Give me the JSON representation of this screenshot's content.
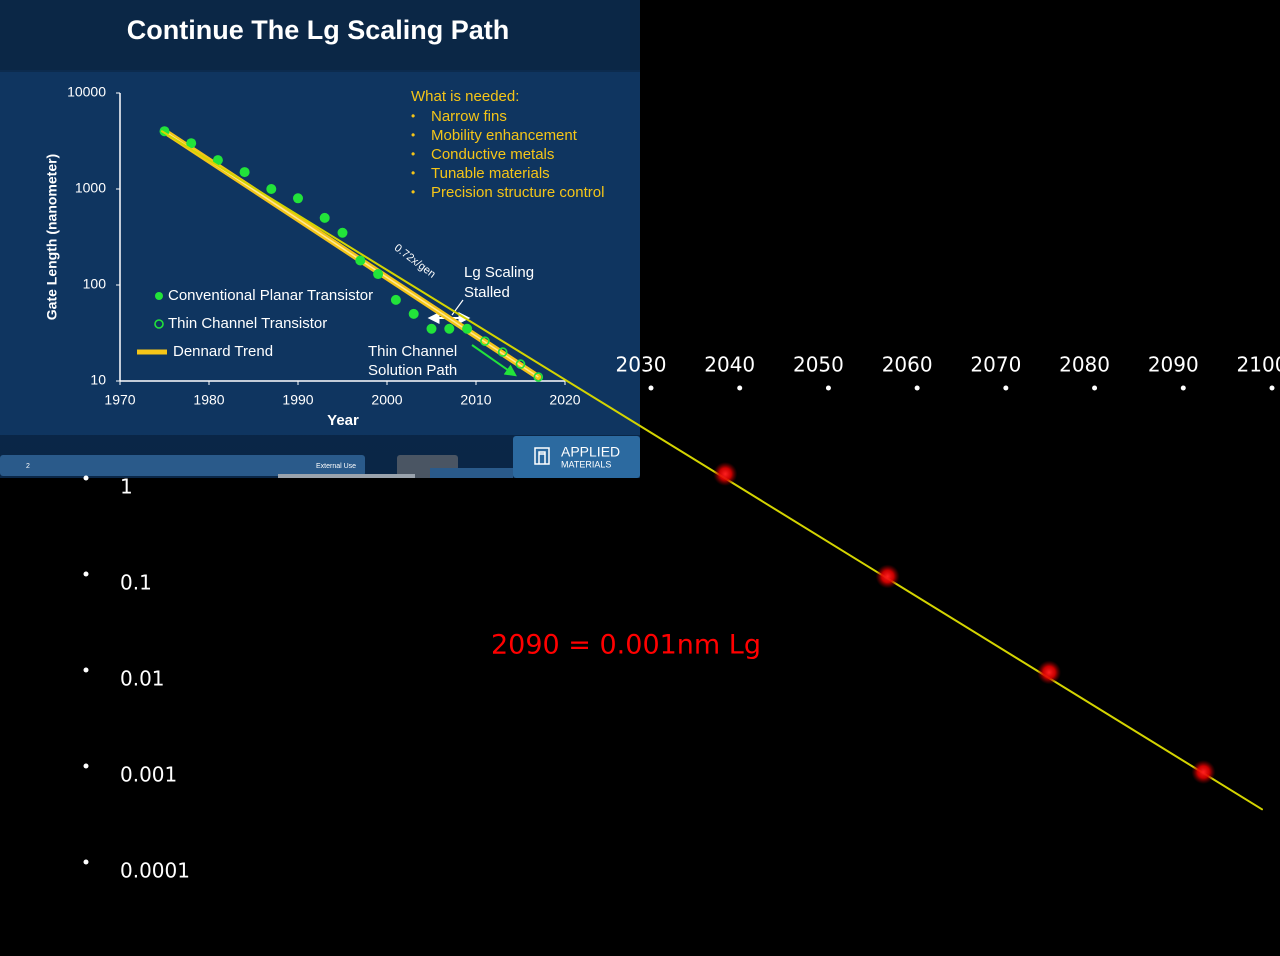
{
  "slide": {
    "page_number": "2",
    "footer": "External Use",
    "logo": [
      "APPLIED",
      "MATERIALS"
    ]
  },
  "chart_data": [
    {
      "type": "scatter",
      "title": "Continue The Lg Scaling Path",
      "x_label": "Year",
      "y_label": "Gate Length (nanometer)",
      "xlim": [
        1970,
        2020
      ],
      "xticks": [
        1970,
        1980,
        1990,
        2000,
        2010,
        2020
      ],
      "ylim": [
        10,
        10000
      ],
      "yticks": [
        10,
        100,
        1000,
        10000
      ],
      "y_scale": "log",
      "grid": false,
      "series": [
        {
          "name": "Conventional Planar Transistor",
          "color": "#22e33a",
          "mode": "markers",
          "marker": "filled",
          "x": [
            1975,
            1978,
            1981,
            1984,
            1987,
            1990,
            1993,
            1995,
            1997,
            1999,
            2001,
            2003,
            2005,
            2007,
            2009
          ],
          "values": [
            4000,
            3000,
            2000,
            1500,
            1000,
            800,
            500,
            350,
            180,
            130,
            70,
            50,
            35,
            35,
            35
          ]
        },
        {
          "name": "Thin Channel Transistor",
          "color": "#22e33a",
          "mode": "markers",
          "marker": "open",
          "x": [
            2011,
            2013,
            2015,
            2017
          ],
          "values": [
            26,
            20,
            15,
            11
          ]
        },
        {
          "name": "Dennard Trend",
          "color": "#f5c518",
          "mode": "line",
          "x": [
            1975,
            2017
          ],
          "values": [
            4000,
            11
          ]
        }
      ],
      "notes": {
        "heading": "What is needed:",
        "color": "#f5c518",
        "items": [
          "Narrow fins",
          "Mobility enhancement",
          "Conductive metals",
          "Tunable materials",
          "Precision structure control"
        ]
      },
      "annotations": [
        "0.72x/gen",
        "Lg Scaling",
        "Stalled",
        "Thin Channel",
        "Solution Path"
      ]
    },
    {
      "type": "line",
      "y_scale": "log",
      "xlim": [
        2030,
        2100
      ],
      "xticks": [
        2030,
        2040,
        2050,
        2060,
        2070,
        2080,
        2090,
        2100
      ],
      "ylim": [
        0.0001,
        1
      ],
      "yticks": [
        1,
        0.1,
        0.01,
        0.001,
        0.0001
      ],
      "annotation": "2090 = 0.001nm Lg",
      "annotation_color": "#ff0000",
      "series": [
        {
          "color": "#d4d400",
          "mode": "line",
          "x": [
            1976,
            2100
          ],
          "values": [
            5200,
            0.00045
          ]
        },
        {
          "color": "#ff0000",
          "mode": "markers",
          "marker": "glow",
          "x": [
            2039.5,
            2057.8,
            2076,
            2093.4
          ],
          "values": [
            1.4,
            0.12,
            0.012,
            0.0011
          ]
        }
      ]
    }
  ]
}
